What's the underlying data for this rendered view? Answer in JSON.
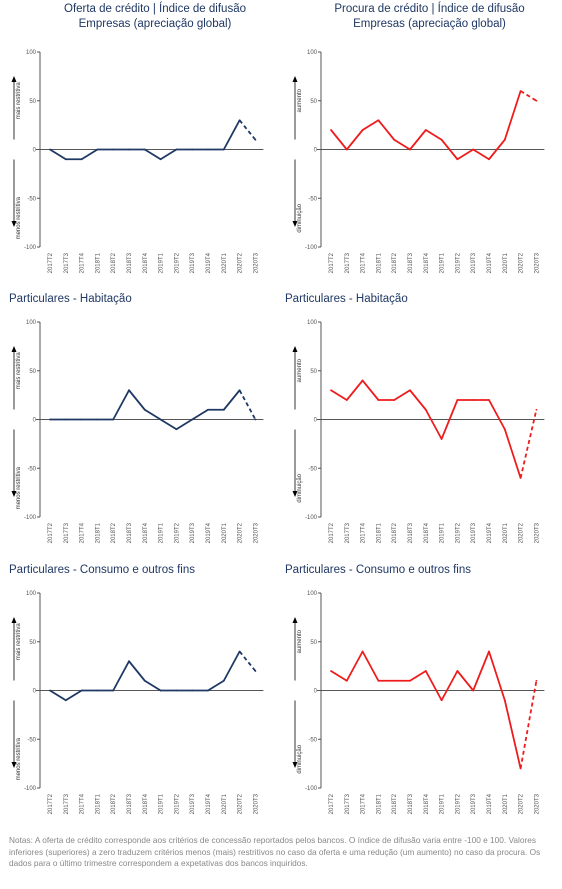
{
  "headers": {
    "left_line1": "Oferta de crédito  |  Índice de difusão",
    "left_line2": "Empresas (apreciação global)",
    "right_line1": "Procura de crédito  |  Índice de difusão",
    "right_line2": "Empresas (apreciação global)"
  },
  "row_titles": {
    "row2_left": "Particulares - Habitação",
    "row2_right": "Particulares - Habitação",
    "row3_left": "Particulares - Consumo e outros fins",
    "row3_right": "Particulares - Consumo e outros fins"
  },
  "notes": "Notas: A oferta de crédito corresponde aos critérios de concessão reportados pelos bancos. O índice de difusão varia entre -100 e 100. Valores inferiores (superiores) a zero traduzem critérios menos (mais) restritivos no caso da oferta e uma redução (um aumento) no caso da procura. Os dados para o último trimestre correspondem a expetativas dos bancos inquiridos.",
  "colors": {
    "supply": "#1f3864",
    "demand": "#ee1c1c",
    "axis": "#555555"
  },
  "chart_data": [
    {
      "id": "oferta-empresas",
      "type": "line",
      "categories": [
        "2017T2",
        "2017T3",
        "2017T4",
        "2018T1",
        "2018T2",
        "2018T3",
        "2018T4",
        "2019T1",
        "2019T2",
        "2019T3",
        "2019T4",
        "2020T1",
        "2020T2",
        "2020T3"
      ],
      "values": [
        0,
        -10,
        -10,
        0,
        0,
        0,
        0,
        -10,
        0,
        0,
        0,
        0,
        30,
        10
      ],
      "ylim": [
        -100,
        100
      ],
      "yticks": [
        100,
        50,
        0,
        -50,
        -100
      ],
      "upper_label": "mais restritiva",
      "lower_label": "menos restritiva",
      "last_segment_dashed": true,
      "color": "#1f3864"
    },
    {
      "id": "procura-empresas",
      "type": "line",
      "categories": [
        "2017T2",
        "2017T3",
        "2017T4",
        "2018T1",
        "2018T2",
        "2018T3",
        "2018T4",
        "2019T1",
        "2019T2",
        "2019T3",
        "2019T4",
        "2020T1",
        "2020T2",
        "2020T3"
      ],
      "values": [
        20,
        0,
        20,
        30,
        10,
        0,
        20,
        10,
        -10,
        0,
        -10,
        10,
        60,
        50
      ],
      "ylim": [
        -100,
        100
      ],
      "yticks": [
        100,
        50,
        0,
        -50,
        -100
      ],
      "upper_label": "aumento",
      "lower_label": "diminuição",
      "last_segment_dashed": true,
      "color": "#ee1c1c"
    },
    {
      "id": "oferta-habitacao",
      "type": "line",
      "categories": [
        "2017T2",
        "2017T3",
        "2017T4",
        "2018T1",
        "2018T2",
        "2018T3",
        "2018T4",
        "2019T1",
        "2019T2",
        "2019T3",
        "2019T4",
        "2020T1",
        "2020T2",
        "2020T3"
      ],
      "values": [
        0,
        0,
        0,
        0,
        0,
        30,
        10,
        0,
        -10,
        0,
        10,
        10,
        30,
        0
      ],
      "ylim": [
        -100,
        100
      ],
      "yticks": [
        100,
        50,
        0,
        -50,
        -100
      ],
      "upper_label": "mais restritiva",
      "lower_label": "menos restritiva",
      "last_segment_dashed": true,
      "color": "#1f3864"
    },
    {
      "id": "procura-habitacao",
      "type": "line",
      "categories": [
        "2017T2",
        "2017T3",
        "2017T4",
        "2018T1",
        "2018T2",
        "2018T3",
        "2018T4",
        "2019T1",
        "2019T2",
        "2019T3",
        "2019T4",
        "2020T1",
        "2020T2",
        "2020T3"
      ],
      "values": [
        30,
        20,
        40,
        20,
        20,
        30,
        10,
        -20,
        20,
        20,
        20,
        -10,
        -60,
        10
      ],
      "ylim": [
        -100,
        100
      ],
      "yticks": [
        100,
        50,
        0,
        -50,
        -100
      ],
      "upper_label": "aumento",
      "lower_label": "diminuição",
      "last_segment_dashed": true,
      "color": "#ee1c1c"
    },
    {
      "id": "oferta-consumo",
      "type": "line",
      "categories": [
        "2017T2",
        "2017T3",
        "2017T4",
        "2018T1",
        "2018T2",
        "2018T3",
        "2018T4",
        "2019T1",
        "2019T2",
        "2019T3",
        "2019T4",
        "2020T1",
        "2020T2",
        "2020T3"
      ],
      "values": [
        0,
        -10,
        0,
        0,
        0,
        30,
        10,
        0,
        0,
        0,
        0,
        10,
        40,
        20
      ],
      "ylim": [
        -100,
        100
      ],
      "yticks": [
        100,
        50,
        0,
        -50,
        -100
      ],
      "upper_label": "mais restritiva",
      "lower_label": "menos restritiva",
      "last_segment_dashed": true,
      "color": "#1f3864"
    },
    {
      "id": "procura-consumo",
      "type": "line",
      "categories": [
        "2017T2",
        "2017T3",
        "2017T4",
        "2018T1",
        "2018T2",
        "2018T3",
        "2018T4",
        "2019T1",
        "2019T2",
        "2019T3",
        "2019T4",
        "2020T1",
        "2020T2",
        "2020T3"
      ],
      "values": [
        20,
        10,
        40,
        10,
        10,
        10,
        20,
        -10,
        20,
        0,
        40,
        -10,
        -80,
        10
      ],
      "ylim": [
        -100,
        100
      ],
      "yticks": [
        100,
        50,
        0,
        -50,
        -100
      ],
      "upper_label": "aumento",
      "lower_label": "diminuição",
      "last_segment_dashed": true,
      "color": "#ee1c1c"
    }
  ]
}
